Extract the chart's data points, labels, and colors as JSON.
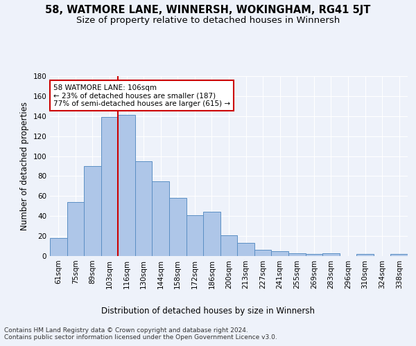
{
  "title": "58, WATMORE LANE, WINNERSH, WOKINGHAM, RG41 5JT",
  "subtitle": "Size of property relative to detached houses in Winnersh",
  "xlabel": "Distribution of detached houses by size in Winnersh",
  "ylabel": "Number of detached properties",
  "categories": [
    "61sqm",
    "75sqm",
    "89sqm",
    "103sqm",
    "116sqm",
    "130sqm",
    "144sqm",
    "158sqm",
    "172sqm",
    "186sqm",
    "200sqm",
    "213sqm",
    "227sqm",
    "241sqm",
    "255sqm",
    "269sqm",
    "283sqm",
    "296sqm",
    "310sqm",
    "324sqm",
    "338sqm"
  ],
  "values": [
    18,
    54,
    90,
    139,
    141,
    95,
    75,
    58,
    41,
    44,
    21,
    13,
    6,
    5,
    3,
    2,
    3,
    0,
    2,
    0,
    2
  ],
  "bar_color": "#aec6e8",
  "bar_edgecolor": "#5b8fc4",
  "vline_x_pos": 3.5,
  "vline_color": "#cc0000",
  "annotation_text": "58 WATMORE LANE: 106sqm\n← 23% of detached houses are smaller (187)\n77% of semi-detached houses are larger (615) →",
  "annotation_box_color": "#ffffff",
  "annotation_box_edgecolor": "#cc0000",
  "ylim": [
    0,
    180
  ],
  "yticks": [
    0,
    20,
    40,
    60,
    80,
    100,
    120,
    140,
    160,
    180
  ],
  "footer_text": "Contains HM Land Registry data © Crown copyright and database right 2024.\nContains public sector information licensed under the Open Government Licence v3.0.",
  "background_color": "#eef2fa",
  "plot_background": "#eef2fa",
  "grid_color": "#ffffff",
  "title_fontsize": 10.5,
  "subtitle_fontsize": 9.5,
  "axis_label_fontsize": 8.5,
  "tick_fontsize": 7.5,
  "footer_fontsize": 6.5,
  "annotation_fontsize": 7.5
}
